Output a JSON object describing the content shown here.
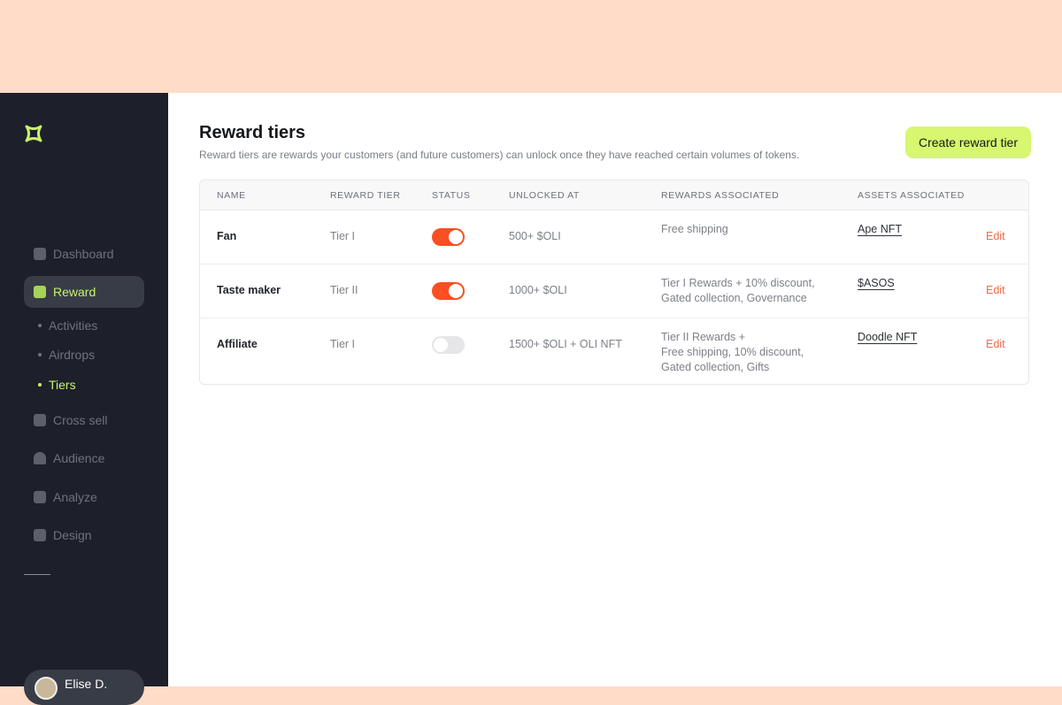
{
  "colors": {
    "accent": "#d6f76f",
    "toggle_on": "#fa4f22",
    "sidebar": "#1d202b",
    "banner": "#ffdcc8",
    "edit": "#f26a4a"
  },
  "sidebar": {
    "items": [
      {
        "label": "Dashboard",
        "icon": "dashboard-icon"
      },
      {
        "label": "Reward",
        "icon": "gift-icon",
        "active": true
      },
      {
        "label": "Cross sell",
        "icon": "cross-sell-icon"
      },
      {
        "label": "Audience",
        "icon": "user-icon"
      },
      {
        "label": "Analyze",
        "icon": "bar-chart-icon"
      },
      {
        "label": "Design",
        "icon": "design-icon"
      }
    ],
    "sub_items": [
      {
        "label": "Activities"
      },
      {
        "label": "Airdrops"
      },
      {
        "label": "Tiers",
        "active": true
      }
    ],
    "user": {
      "name": "Elise D."
    }
  },
  "header": {
    "title": "Reward tiers",
    "subtitle": "Reward tiers are rewards your customers (and future customers) can unlock once they have reached certain volumes of tokens.",
    "create_label": "Create reward tier"
  },
  "table": {
    "columns": [
      "NAME",
      "REWARD TIER",
      "STATUS",
      "UNLOCKED AT",
      "REWARDS ASSOCIATED",
      "ASSETS ASSOCIATED"
    ],
    "rows": [
      {
        "name": "Fan",
        "tier": "Tier I",
        "status": true,
        "unlocked": "500+ $OLI",
        "rewards": [
          "Free shipping"
        ],
        "asset": "Ape NFT",
        "edit": "Edit"
      },
      {
        "name": "Taste maker",
        "tier": "Tier II",
        "status": true,
        "unlocked": "1000+ $OLI",
        "rewards": [
          "Tier I Rewards +  10% discount,",
          "Gated collection, Governance"
        ],
        "asset": "$ASOS",
        "edit": "Edit"
      },
      {
        "name": "Affiliate",
        "tier": "Tier I",
        "status": false,
        "unlocked": "1500+ $OLI + OLI NFT",
        "rewards": [
          "Tier II Rewards +",
          "Free shipping, 10% discount,",
          "Gated collection, Gifts"
        ],
        "asset": "Doodle NFT",
        "edit": "Edit"
      }
    ]
  }
}
